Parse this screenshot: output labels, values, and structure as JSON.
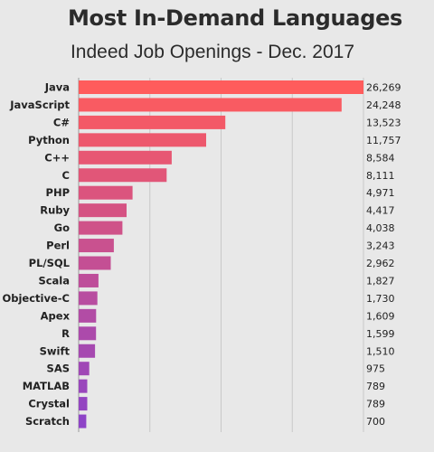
{
  "title": "Most In-Demand Languages",
  "subtitle": "Indeed Job Openings - Dec. 2017",
  "chart_data": {
    "type": "bar",
    "orientation": "horizontal",
    "title": "Most In-Demand Languages",
    "subtitle": "Indeed Job Openings - Dec. 2017",
    "categories": [
      "Java",
      "JavaScript",
      "C#",
      "Python",
      "C++",
      "C",
      "PHP",
      "Ruby",
      "Go",
      "Perl",
      "PL/SQL",
      "Scala",
      "Objective-C",
      "Apex",
      "R",
      "Swift",
      "SAS",
      "MATLAB",
      "Crystal",
      "Scratch"
    ],
    "values": [
      26269,
      24248,
      13523,
      11757,
      8584,
      8111,
      4971,
      4417,
      4038,
      3243,
      2962,
      1827,
      1730,
      1609,
      1599,
      1510,
      975,
      789,
      789,
      700
    ],
    "value_labels": [
      "26,269",
      "24,248",
      "13,523",
      "11,757",
      "8,584",
      "8,111",
      "4,971",
      "4,417",
      "4,038",
      "3,243",
      "2,962",
      "1,827",
      "1,730",
      "1,609",
      "1,599",
      "1,510",
      "975",
      "789",
      "789",
      "700"
    ],
    "xlim": [
      0,
      26269
    ],
    "grid": true,
    "legend": "none",
    "color_start": "#ff5c5c",
    "color_end": "#8e44c7"
  }
}
